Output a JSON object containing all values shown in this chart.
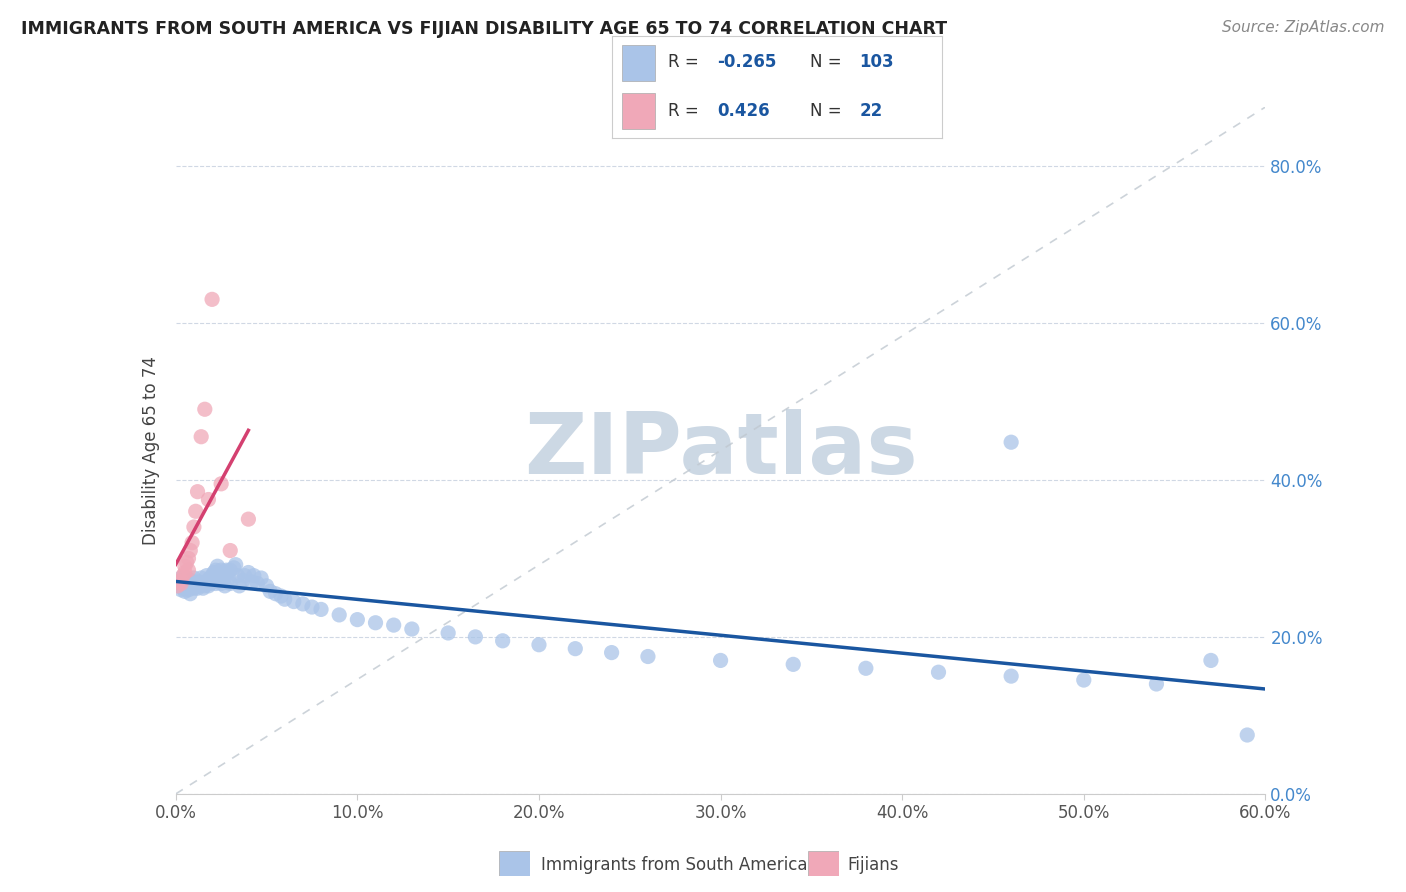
{
  "title": "IMMIGRANTS FROM SOUTH AMERICA VS FIJIAN DISABILITY AGE 65 TO 74 CORRELATION CHART",
  "source": "Source: ZipAtlas.com",
  "xlim": [
    0.0,
    0.6
  ],
  "ylim": [
    0.0,
    0.875
  ],
  "ylabel": "Disability Age 65 to 74",
  "legend_label_blue": "Immigrants from South America",
  "legend_label_pink": "Fijians",
  "blue_color": "#aac4e8",
  "pink_color": "#f0a8b8",
  "blue_line_color": "#1a56a0",
  "pink_line_color": "#d44070",
  "ref_line_color": "#c0c8d0",
  "watermark": "ZIPatlas",
  "watermark_color": "#ccd8e4",
  "blue_scatter_x": [
    0.001,
    0.002,
    0.002,
    0.003,
    0.003,
    0.003,
    0.004,
    0.004,
    0.004,
    0.005,
    0.005,
    0.005,
    0.006,
    0.006,
    0.006,
    0.007,
    0.007,
    0.007,
    0.008,
    0.008,
    0.008,
    0.009,
    0.009,
    0.01,
    0.01,
    0.01,
    0.011,
    0.011,
    0.012,
    0.012,
    0.013,
    0.013,
    0.014,
    0.014,
    0.015,
    0.015,
    0.016,
    0.016,
    0.017,
    0.017,
    0.018,
    0.018,
    0.019,
    0.019,
    0.02,
    0.02,
    0.021,
    0.022,
    0.022,
    0.023,
    0.023,
    0.024,
    0.025,
    0.025,
    0.026,
    0.027,
    0.027,
    0.028,
    0.029,
    0.03,
    0.03,
    0.032,
    0.033,
    0.034,
    0.035,
    0.037,
    0.038,
    0.04,
    0.042,
    0.043,
    0.045,
    0.047,
    0.05,
    0.052,
    0.055,
    0.058,
    0.06,
    0.065,
    0.07,
    0.075,
    0.08,
    0.09,
    0.1,
    0.11,
    0.12,
    0.13,
    0.15,
    0.165,
    0.18,
    0.2,
    0.22,
    0.24,
    0.26,
    0.3,
    0.34,
    0.38,
    0.42,
    0.46,
    0.5,
    0.54,
    0.46,
    0.57,
    0.59
  ],
  "blue_scatter_y": [
    0.27,
    0.265,
    0.268,
    0.272,
    0.26,
    0.275,
    0.268,
    0.262,
    0.27,
    0.265,
    0.258,
    0.272,
    0.268,
    0.262,
    0.275,
    0.26,
    0.265,
    0.27,
    0.268,
    0.255,
    0.272,
    0.265,
    0.27,
    0.268,
    0.262,
    0.275,
    0.265,
    0.27,
    0.268,
    0.262,
    0.265,
    0.27,
    0.268,
    0.275,
    0.262,
    0.268,
    0.27,
    0.265,
    0.278,
    0.268,
    0.272,
    0.265,
    0.268,
    0.275,
    0.27,
    0.278,
    0.282,
    0.268,
    0.285,
    0.272,
    0.29,
    0.278,
    0.268,
    0.285,
    0.272,
    0.265,
    0.28,
    0.285,
    0.275,
    0.268,
    0.285,
    0.288,
    0.292,
    0.278,
    0.265,
    0.272,
    0.278,
    0.282,
    0.27,
    0.278,
    0.268,
    0.275,
    0.265,
    0.258,
    0.255,
    0.252,
    0.248,
    0.245,
    0.242,
    0.238,
    0.235,
    0.228,
    0.222,
    0.218,
    0.215,
    0.21,
    0.205,
    0.2,
    0.195,
    0.19,
    0.185,
    0.18,
    0.175,
    0.17,
    0.165,
    0.16,
    0.155,
    0.15,
    0.145,
    0.14,
    0.448,
    0.17,
    0.075
  ],
  "pink_scatter_x": [
    0.001,
    0.002,
    0.003,
    0.003,
    0.004,
    0.005,
    0.005,
    0.006,
    0.007,
    0.007,
    0.008,
    0.009,
    0.01,
    0.011,
    0.012,
    0.014,
    0.016,
    0.018,
    0.02,
    0.025,
    0.03,
    0.04
  ],
  "pink_scatter_y": [
    0.265,
    0.27,
    0.268,
    0.272,
    0.278,
    0.282,
    0.29,
    0.295,
    0.285,
    0.3,
    0.31,
    0.32,
    0.34,
    0.36,
    0.385,
    0.455,
    0.49,
    0.375,
    0.63,
    0.395,
    0.31,
    0.35
  ]
}
